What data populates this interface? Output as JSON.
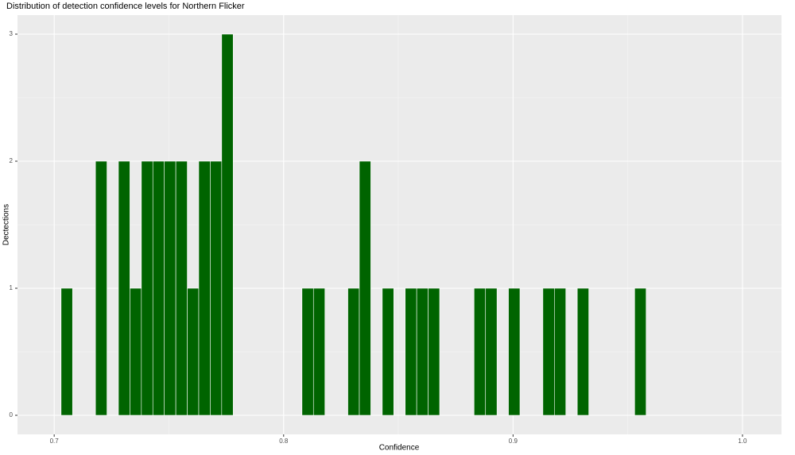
{
  "chart_data": {
    "type": "histogram",
    "title": "Distribution of detection confidence levels for Northern Flicker",
    "x_label": "Confidence",
    "y_label": "Dectections",
    "bins": [
      0.703,
      0.708,
      0.713,
      0.718,
      0.723,
      0.728,
      0.733,
      0.738,
      0.743,
      0.748,
      0.753,
      0.758,
      0.763,
      0.768,
      0.773,
      0.778,
      0.783,
      0.788,
      0.793,
      0.798,
      0.803,
      0.808,
      0.813,
      0.818,
      0.823,
      0.828,
      0.833,
      0.838,
      0.843,
      0.848,
      0.853,
      0.858,
      0.863,
      0.868,
      0.873,
      0.878,
      0.883,
      0.888,
      0.893,
      0.898,
      0.903,
      0.908,
      0.913,
      0.918,
      0.923,
      0.928,
      0.933,
      0.938,
      0.943,
      0.948,
      0.953,
      0.958
    ],
    "values": [
      1,
      0,
      0,
      2,
      0,
      2,
      1,
      2,
      2,
      2,
      2,
      1,
      2,
      2,
      3,
      0,
      0,
      0,
      0,
      0,
      0,
      1,
      1,
      0,
      0,
      1,
      2,
      0,
      1,
      0,
      1,
      1,
      1,
      0,
      0,
      0,
      1,
      1,
      0,
      1,
      0,
      0,
      1,
      1,
      0,
      1,
      0,
      0,
      0,
      0,
      1
    ],
    "color": "#006400",
    "xlim": [
      0.684,
      1.017
    ],
    "xticks": [
      0.7,
      0.8,
      0.9,
      {
        "value": 1,
        "label": "1.0"
      }
    ],
    "ylim": [
      -0.15,
      3.15
    ],
    "yticks": [
      0,
      1,
      2,
      3
    ],
    "grid": true
  }
}
